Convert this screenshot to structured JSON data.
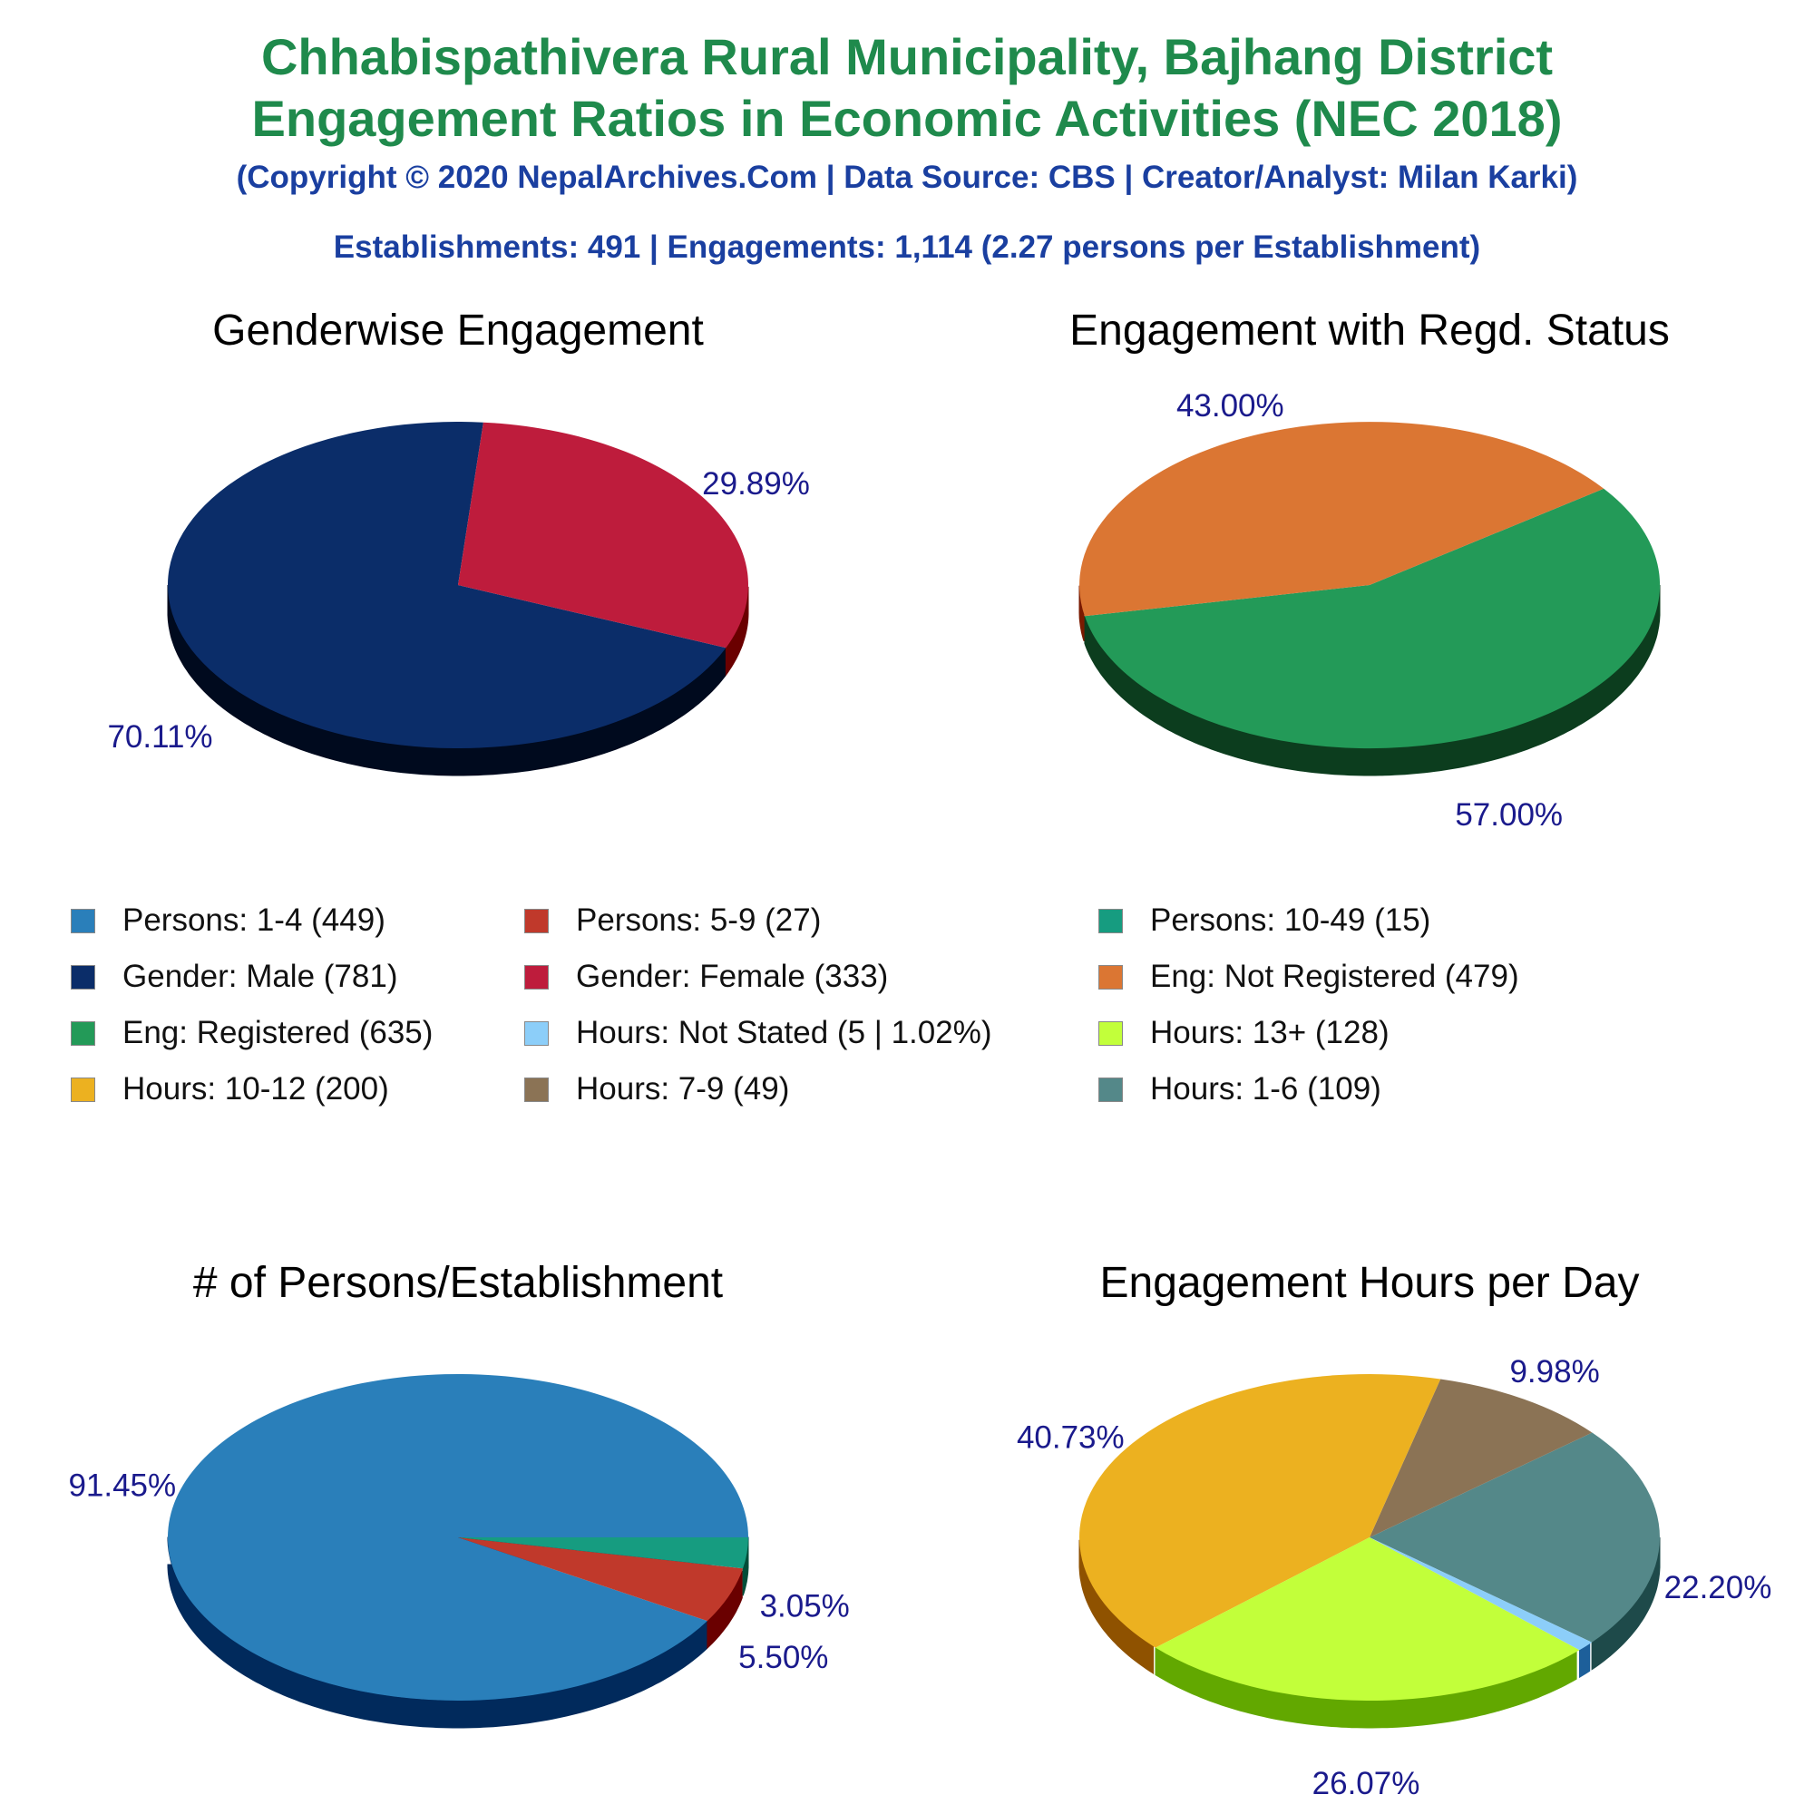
{
  "header": {
    "title_line1": "Chhabispathivera Rural Municipality, Bajhang District",
    "title_line2": "Engagement Ratios in Economic Activities (NEC 2018)",
    "copyright": "(Copyright © 2020 NepalArchives.Com | Data Source: CBS | Creator/Analyst: Milan Karki)",
    "summary": "Establishments: 491 | Engagements: 1,114 (2.27 persons per Establishment)"
  },
  "label_color": "#1a1a8c",
  "chart_data": [
    {
      "type": "pie",
      "title": "Genderwise Engagement",
      "start_angle": 85,
      "slices": [
        {
          "name": "Gender: Male (781)",
          "value": 70.11,
          "label": "70.11%",
          "color": "#0b2d69",
          "side": "#000a1e"
        },
        {
          "name": "Gender: Female (333)",
          "value": 29.89,
          "label": "29.89%",
          "color": "#be1c3c",
          "side": "#6a0000"
        }
      ]
    },
    {
      "type": "pie",
      "title": "Engagement with Regd. Status",
      "start_angle": 191,
      "slices": [
        {
          "name": "Eng: Registered (635)",
          "value": 57.0,
          "label": "57.00%",
          "color": "#239a58",
          "side": "#0c3d1e"
        },
        {
          "name": "Eng: Not Registered (479)",
          "value": 43.0,
          "label": "43.00%",
          "color": "#db7633",
          "side": "#7a1a00"
        }
      ]
    },
    {
      "type": "pie",
      "title": "# of Persons/Establishment",
      "start_angle": 0,
      "slices": [
        {
          "name": "Persons: 1-4 (449)",
          "value": 91.45,
          "label": "91.45%",
          "color": "#2a7fba",
          "side": "#012a5c"
        },
        {
          "name": "Persons: 5-9 (27)",
          "value": 5.5,
          "label": "5.50%",
          "color": "#c0392b",
          "side": "#6a0000"
        },
        {
          "name": "Persons: 10-49 (15)",
          "value": 3.05,
          "label": "3.05%",
          "color": "#169c80",
          "side": "#014d38"
        }
      ]
    },
    {
      "type": "pie",
      "title": "Engagement Hours per Day",
      "start_angle": -40,
      "slices": [
        {
          "name": "Hours: 1-6 (109)",
          "value": 22.2,
          "label": "22.20%",
          "color": "#548889",
          "side": "#1e4a4a"
        },
        {
          "name": "Hours: 7-9 (49)",
          "value": 9.98,
          "label": "9.98%",
          "color": "#8b7355",
          "side": "#4a3520"
        },
        {
          "name": "Hours: 10-12 (200)",
          "value": 40.73,
          "label": "40.73%",
          "color": "#ecb120",
          "side": "#8f5200"
        },
        {
          "name": "Hours: 13+ (128)",
          "value": 26.07,
          "label": "26.07%",
          "color": "#c2ff3a",
          "side": "#62a800"
        },
        {
          "name": "Hours: Not Stated (5 | 1.02%)",
          "value": 1.02,
          "label": "",
          "color": "#8ccef9",
          "side": "#1d5f9a"
        }
      ]
    }
  ],
  "legend": [
    {
      "label": "Persons: 1-4 (449)",
      "color": "#2a7fba"
    },
    {
      "label": "Persons: 5-9 (27)",
      "color": "#c0392b"
    },
    {
      "label": "Persons: 10-49 (15)",
      "color": "#169c80"
    },
    {
      "label": "Gender: Male (781)",
      "color": "#0b2d69"
    },
    {
      "label": "Gender: Female (333)",
      "color": "#be1c3c"
    },
    {
      "label": "Eng: Not Registered (479)",
      "color": "#db7633"
    },
    {
      "label": "Eng: Registered (635)",
      "color": "#239a58"
    },
    {
      "label": "Hours: Not Stated (5 | 1.02%)",
      "color": "#8ccef9"
    },
    {
      "label": "Hours: 13+ (128)",
      "color": "#c2ff3a"
    },
    {
      "label": "Hours: 10-12 (200)",
      "color": "#ecb120"
    },
    {
      "label": "Hours: 7-9 (49)",
      "color": "#8b7355"
    },
    {
      "label": "Hours: 1-6 (109)",
      "color": "#548889"
    }
  ]
}
